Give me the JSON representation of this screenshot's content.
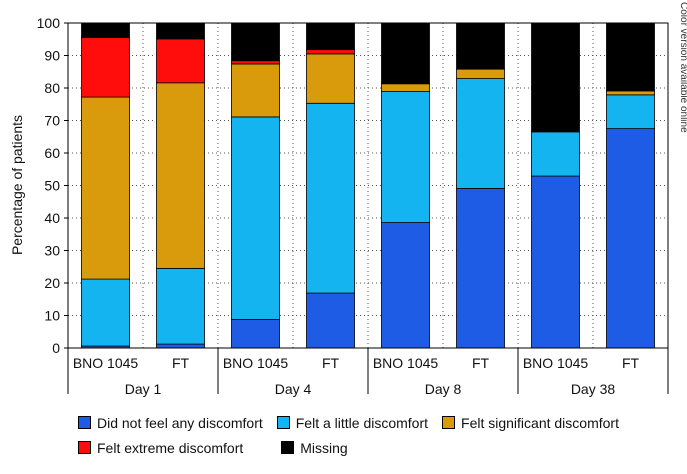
{
  "chart_data": {
    "type": "bar",
    "stacked": true,
    "ylabel": "Percentage of patients",
    "ylim": [
      0,
      100
    ],
    "yticks": [
      0,
      10,
      20,
      30,
      40,
      50,
      60,
      70,
      80,
      90,
      100
    ],
    "groups": [
      {
        "label": "Day 1",
        "bars": [
          "BNO 1045",
          "FT"
        ]
      },
      {
        "label": "Day 4",
        "bars": [
          "BNO 1045",
          "FT"
        ]
      },
      {
        "label": "Day 8",
        "bars": [
          "BNO 1045",
          "FT"
        ]
      },
      {
        "label": "Day 38",
        "bars": [
          "BNO 1045",
          "FT"
        ]
      }
    ],
    "categories": [
      "BNO 1045",
      "FT",
      "BNO 1045",
      "FT",
      "BNO 1045",
      "FT",
      "BNO 1045",
      "FT"
    ],
    "series": [
      {
        "name": "Did not feel any discomfort",
        "color": "#1f5ce6",
        "values": [
          0.6,
          1.2,
          8.8,
          16.9,
          38.6,
          49.1,
          52.9,
          67.5
        ]
      },
      {
        "name": "Felt a little discomfort",
        "color": "#14b4f0",
        "values": [
          20.6,
          23.3,
          62.3,
          58.4,
          40.3,
          33.8,
          13.6,
          10.4
        ]
      },
      {
        "name": "Felt significant discomfort",
        "color": "#d99a0c",
        "values": [
          56.0,
          57.1,
          16.3,
          15.2,
          2.4,
          2.9,
          0.0,
          1.2
        ]
      },
      {
        "name": "Felt extreme discomfort",
        "color": "#ff0d0d",
        "values": [
          18.3,
          13.5,
          1.0,
          1.3,
          0.0,
          0.0,
          0.0,
          0.0
        ]
      },
      {
        "name": "Missing",
        "color": "#000000",
        "values": [
          4.5,
          4.9,
          11.6,
          8.2,
          18.7,
          14.2,
          33.5,
          20.9
        ]
      }
    ]
  },
  "side_note": "Color version available online"
}
